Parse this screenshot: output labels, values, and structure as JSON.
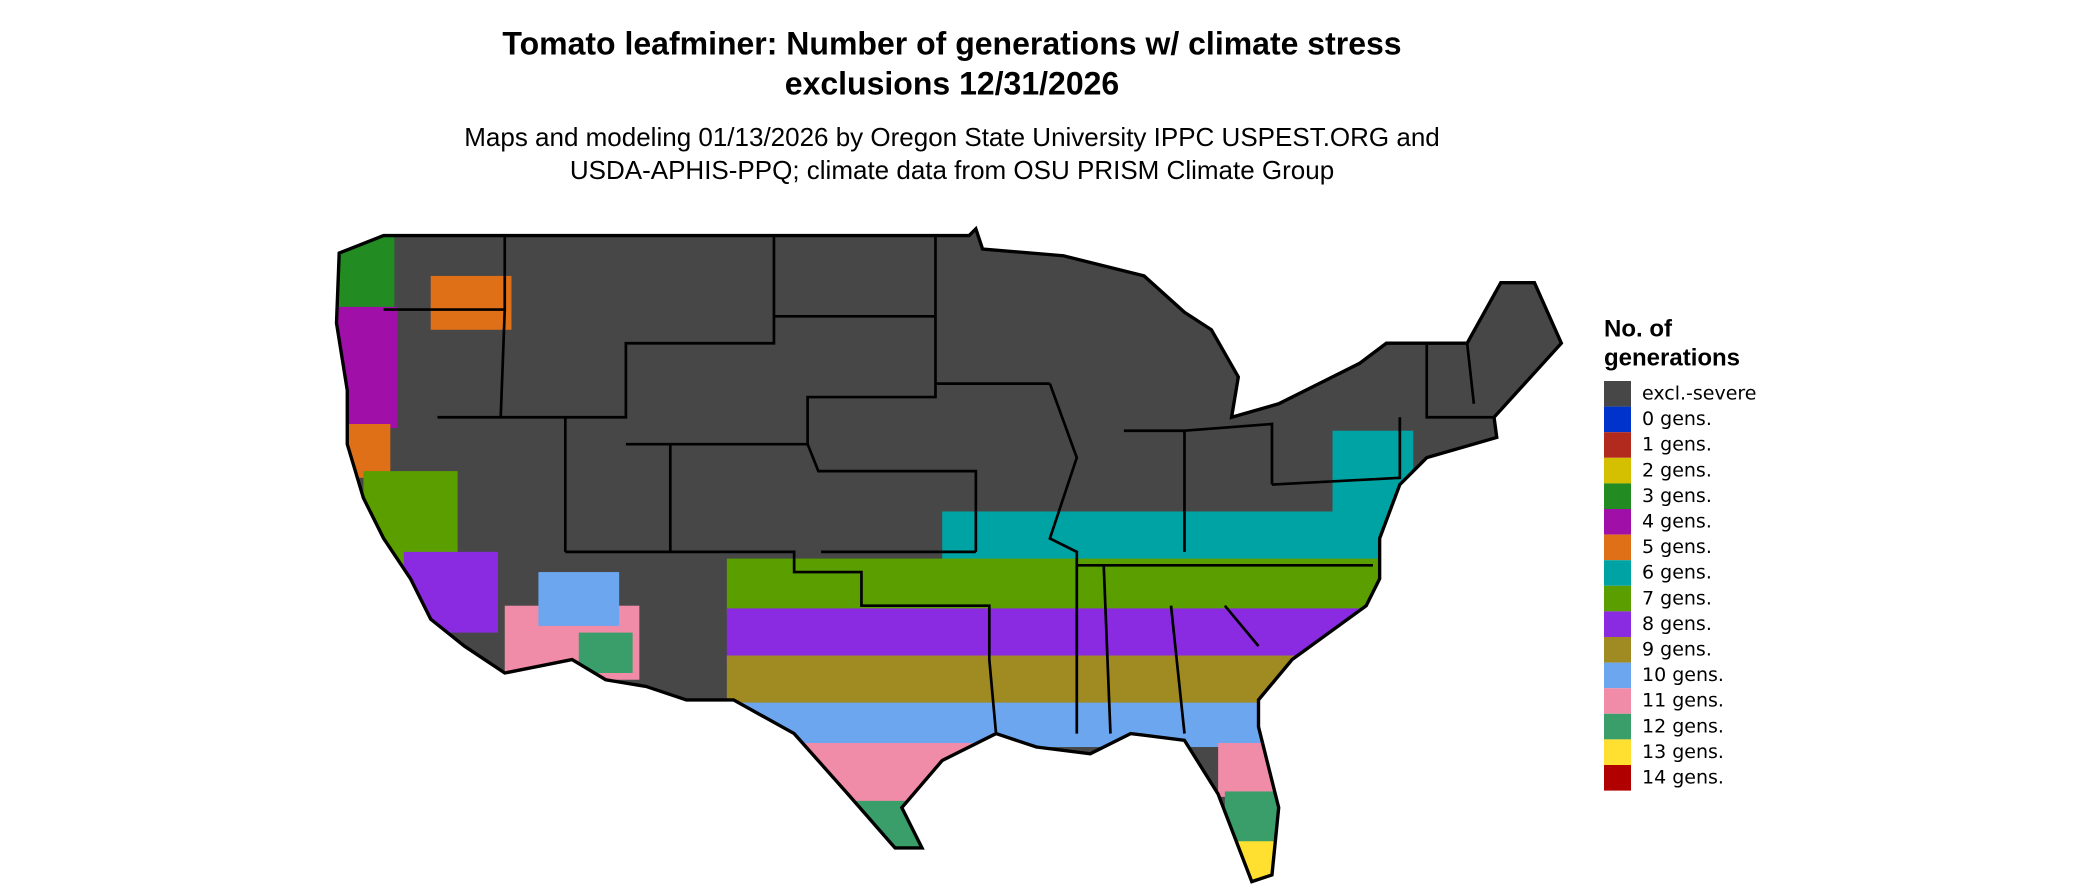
{
  "header": {
    "title_lines": [
      "Tomato leafminer: Number of generations w/ climate stress",
      "exclusions 12/31/2026"
    ],
    "subtitle_lines": [
      "Maps and modeling 01/13/2026 by Oregon State University IPPC USPEST.ORG and",
      "USDA-APHIS-PPQ; climate data from OSU PRISM Climate Group"
    ]
  },
  "legend": {
    "title_lines": [
      "No. of",
      "generations"
    ],
    "items": [
      {
        "label": "excl.-severe",
        "color": "#474747"
      },
      {
        "label": "0 gens.",
        "color": "#0033cc"
      },
      {
        "label": "1 gens.",
        "color": "#b22a1e"
      },
      {
        "label": "2 gens.",
        "color": "#d4c000"
      },
      {
        "label": "3 gens.",
        "color": "#228b22"
      },
      {
        "label": "4 gens.",
        "color": "#a010a8"
      },
      {
        "label": "5 gens.",
        "color": "#e07018"
      },
      {
        "label": "6 gens.",
        "color": "#00a3a3"
      },
      {
        "label": "7 gens.",
        "color": "#5a9e00"
      },
      {
        "label": "8 gens.",
        "color": "#8a2be2"
      },
      {
        "label": "9 gens.",
        "color": "#a08a22"
      },
      {
        "label": "10 gens.",
        "color": "#6ca6ee"
      },
      {
        "label": "11 gens.",
        "color": "#f08ca8"
      },
      {
        "label": "12 gens.",
        "color": "#3a9e6a"
      },
      {
        "label": "13 gens.",
        "color": "#ffe030"
      },
      {
        "label": "14 gens.",
        "color": "#b00000"
      }
    ]
  }
}
